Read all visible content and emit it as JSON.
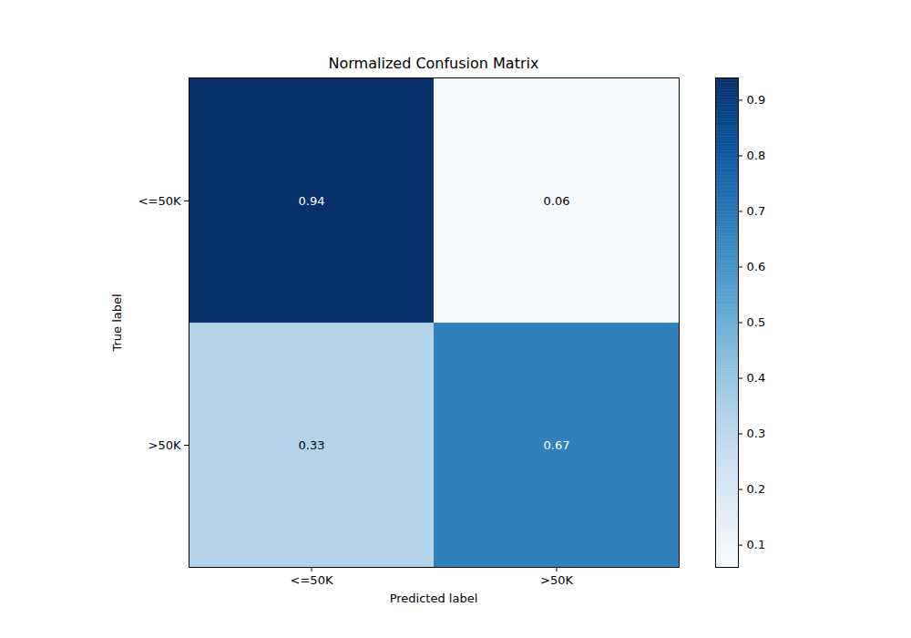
{
  "chart_data": {
    "type": "heatmap",
    "title": "Normalized Confusion Matrix",
    "x_label": "Predicted label",
    "y_label": "True label",
    "x_categories": [
      "<=50K",
      ">50K"
    ],
    "y_categories": [
      "<=50K",
      ">50K"
    ],
    "cells": [
      [
        0.94,
        0.06
      ],
      [
        0.33,
        0.67
      ]
    ],
    "data_labels": true,
    "color": "Blues",
    "colorbar_range": [
      0.06,
      0.94
    ],
    "colorbar_ticks": [
      0.1,
      0.2,
      0.3,
      0.4,
      0.5,
      0.6,
      0.7,
      0.8,
      0.9
    ]
  }
}
